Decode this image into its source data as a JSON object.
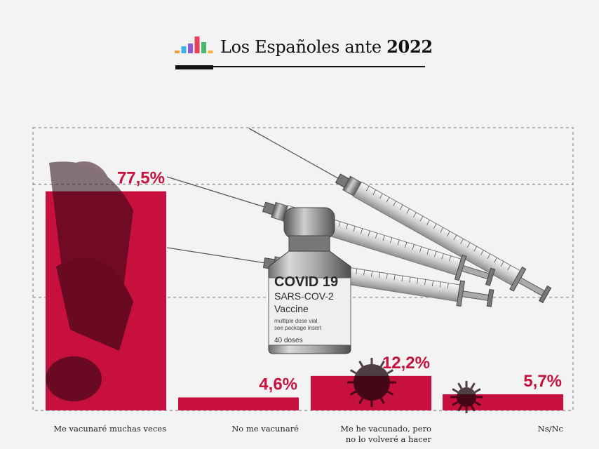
{
  "header": {
    "title_prefix": "Los Españoles ante",
    "title_year": "2022",
    "logo_colors": [
      "#f39c3c",
      "#3cb0e8",
      "#8e5bd3",
      "#e8405a",
      "#47b96a",
      "#f0b53a"
    ]
  },
  "colors": {
    "bar": "#c8103e",
    "label": "#c8103e",
    "frame": "#8a8a8a",
    "category_text": "#222222"
  },
  "vaccine_label": {
    "line1": "COVID 19",
    "line2": "SARS-COV-2",
    "line3": "Vaccine",
    "line4": "multiple dose vial",
    "line5": "see package insert",
    "line6": "40 doses"
  },
  "chart_data": {
    "type": "bar",
    "categories": [
      [
        "Me vacunaré muchas veces"
      ],
      [
        "No me vacunaré"
      ],
      [
        "Me he vacunado, pero",
        "no lo volveré a hacer"
      ],
      [
        "Ns/Nc"
      ]
    ],
    "values": [
      77.5,
      4.6,
      12.2,
      5.7
    ],
    "value_labels": [
      "77,5%",
      "4,6%",
      "12,2%",
      "5,7%"
    ],
    "ylim": [
      0,
      100
    ],
    "grid": true
  }
}
